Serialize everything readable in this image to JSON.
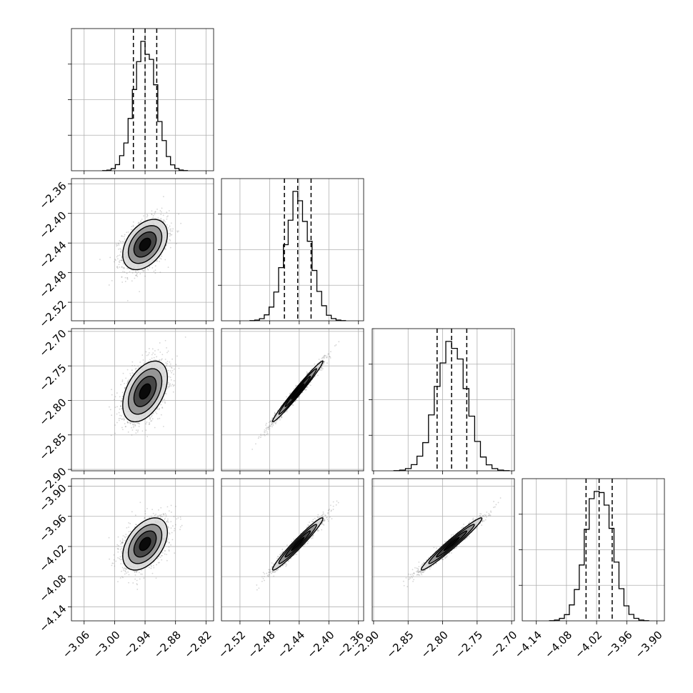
{
  "chart_data": {
    "type": "corner",
    "parameters": [
      {
        "center": -2.94,
        "sigma": 0.022,
        "axis_range": [
          -3.085,
          -2.805
        ],
        "ticks": [
          "-3.06",
          "-3.00",
          "-2.94",
          "-2.88",
          "-2.82"
        ],
        "tick_values": [
          -3.06,
          -3.0,
          -2.94,
          -2.88,
          -2.82
        ],
        "quantiles": [
          -2.963,
          -2.94,
          -2.917
        ]
      },
      {
        "center": -2.442,
        "sigma": 0.017,
        "axis_range": [
          -2.545,
          -2.353
        ],
        "ticks": [
          "-2.52",
          "-2.48",
          "-2.44",
          "-2.40",
          "-2.36"
        ],
        "tick_values": [
          -2.52,
          -2.48,
          -2.44,
          -2.4,
          -2.36
        ],
        "quantiles": [
          -2.46,
          -2.442,
          -2.424
        ]
      },
      {
        "center": -2.787,
        "sigma": 0.022,
        "axis_range": [
          -2.902,
          -2.696
        ],
        "ticks": [
          "-2.90",
          "-2.85",
          "-2.80",
          "-2.75",
          "-2.70"
        ],
        "tick_values": [
          -2.9,
          -2.85,
          -2.8,
          -2.75,
          -2.7
        ],
        "quantiles": [
          -2.808,
          -2.787,
          -2.765
        ]
      },
      {
        "center": -4.015,
        "sigma": 0.026,
        "axis_range": [
          -4.168,
          -3.885
        ],
        "ticks": [
          "-4.14",
          "-4.08",
          "-4.02",
          "-3.96",
          "-3.90"
        ],
        "tick_values": [
          -4.14,
          -4.08,
          -4.02,
          -3.96,
          -3.9
        ],
        "quantiles": [
          -4.041,
          -4.015,
          -3.989
        ]
      }
    ],
    "correlations": [
      [
        1.0,
        0.4,
        0.45,
        0.45
      ],
      [
        0.4,
        1.0,
        0.985,
        0.97
      ],
      [
        0.45,
        0.985,
        1.0,
        0.975
      ],
      [
        0.45,
        0.97,
        0.975,
        1.0
      ]
    ],
    "histogram_bins": 20,
    "contour_levels_sigma": [
      0.5,
      1.0,
      1.5,
      2.0
    ],
    "scatter_color": "#888888",
    "line_color": "#000000",
    "grid": true,
    "title": "",
    "xlabel": "",
    "ylabel": ""
  }
}
